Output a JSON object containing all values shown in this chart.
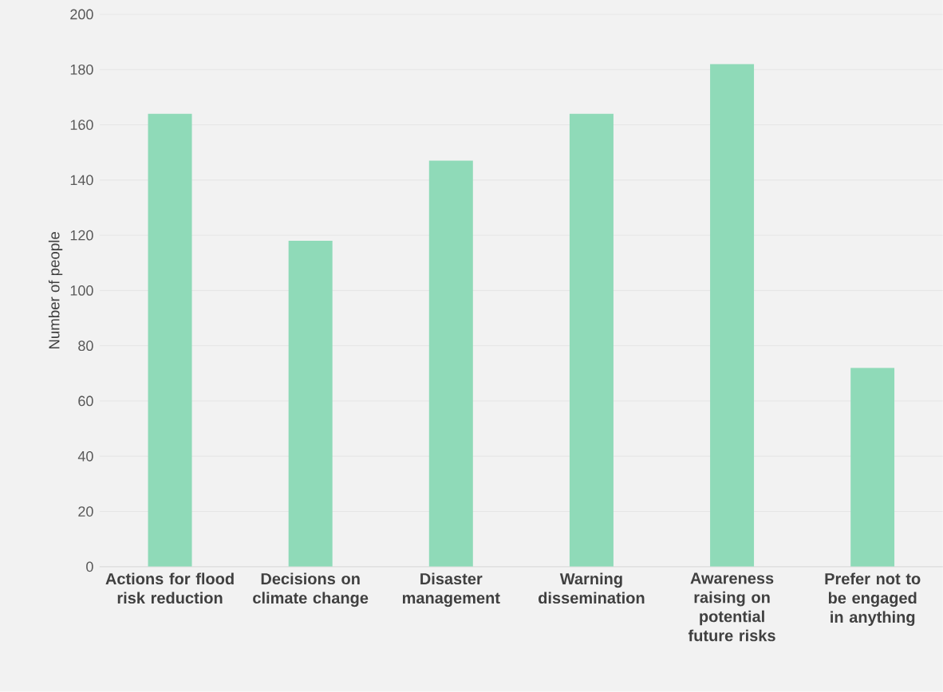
{
  "chart_data": {
    "type": "bar",
    "ylabel": "Number of people",
    "categories": [
      "Actions for flood risk reduction",
      "Decisions on climate change",
      "Disaster management",
      "Warning dissemination",
      "Awareness raising on potential future risks",
      "Prefer not to be engaged in anything"
    ],
    "values": [
      164,
      118,
      147,
      164,
      182,
      72
    ],
    "color": "#8fdab8",
    "ylim": [
      0,
      200
    ],
    "yticks": [
      0,
      20,
      40,
      60,
      80,
      100,
      120,
      140,
      160,
      180,
      200
    ],
    "grid": "y"
  }
}
